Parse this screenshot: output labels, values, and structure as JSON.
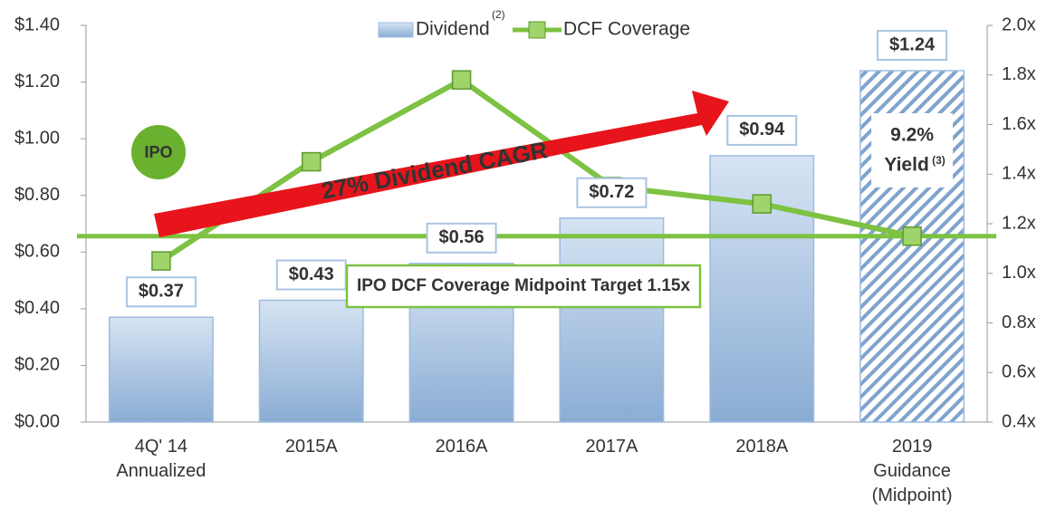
{
  "chart_data": {
    "type": "bar_line",
    "categories": [
      [
        "4Q' 14",
        "Annualized"
      ],
      [
        "2015A"
      ],
      [
        "2016A"
      ],
      [
        "2017A"
      ],
      [
        "2018A"
      ],
      [
        "2019",
        "Guidance",
        "(Midpoint)"
      ]
    ],
    "series": [
      {
        "name": "Dividend",
        "name_note": "(2)",
        "color": "#9dbbe0",
        "values": [
          0.37,
          0.43,
          0.56,
          0.72,
          0.94,
          1.24
        ],
        "value_labels": [
          "$0.37",
          "$0.43",
          "$0.56",
          "$0.72",
          "$0.94",
          "$1.24"
        ],
        "hatched_index": 5
      },
      {
        "name": "DCF Coverage",
        "color": "#7dc242",
        "axis": "y2",
        "values": [
          1.05,
          1.45,
          1.78,
          1.35,
          1.28,
          1.15
        ]
      }
    ],
    "ylim": [
      0,
      1.4
    ],
    "yticks": [
      {
        "value": 0,
        "label": "$0.00"
      },
      {
        "value": 0.2,
        "label": "$0.20"
      },
      {
        "value": 0.4,
        "label": "$0.40"
      },
      {
        "value": 0.6,
        "label": "$0.60"
      },
      {
        "value": 0.8,
        "label": "$0.80"
      },
      {
        "value": 1.0,
        "label": "$1.00"
      },
      {
        "value": 1.2,
        "label": "$1.20"
      },
      {
        "value": 1.4,
        "label": "$1.40"
      }
    ],
    "y2lim": [
      0.4,
      2.0
    ],
    "y2ticks": [
      {
        "value": 0.4,
        "label": "0.4x"
      },
      {
        "value": 0.6,
        "label": "0.6x"
      },
      {
        "value": 0.8,
        "label": "0.8x"
      },
      {
        "value": 1.0,
        "label": "1.0x"
      },
      {
        "value": 1.2,
        "label": "1.2x"
      },
      {
        "value": 1.4,
        "label": "1.4x"
      },
      {
        "value": 1.6,
        "label": "1.6x"
      },
      {
        "value": 1.8,
        "label": "1.8x"
      },
      {
        "value": 2.0,
        "label": "2.0x"
      }
    ],
    "reference_line": {
      "value": 1.15,
      "axis": "y2",
      "label": "IPO DCF Coverage Midpoint Target 1.15x",
      "color": "#7dc242"
    },
    "annotations": {
      "ipo": "IPO",
      "cagr": "27% Dividend CAGR",
      "yield_pct": "9.2%",
      "yield": "Yield",
      "yield_note": "(3)"
    }
  }
}
